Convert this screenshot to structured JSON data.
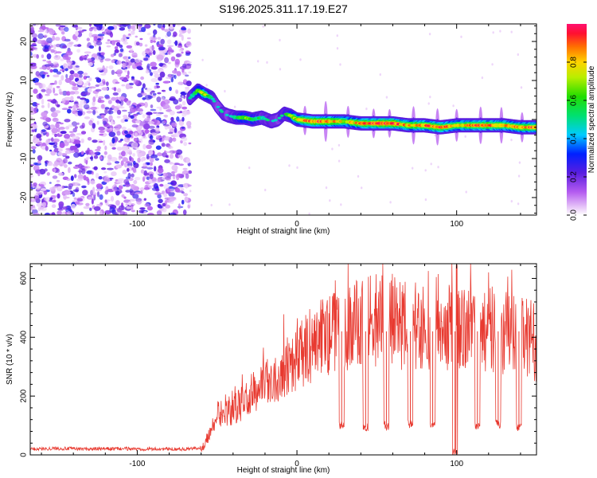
{
  "figure_title": "S196.2025.311.17.19.E27",
  "chart_data": [
    {
      "type": "heatmap",
      "title": "S196.2025.311.17.19.E27",
      "xlabel": "Height of straight line (km)",
      "ylabel": "Frequency (Hz)",
      "xlim": [
        -167,
        150
      ],
      "ylim": [
        -24.5,
        24.5
      ],
      "x_ticks": [
        -100,
        0,
        100
      ],
      "x_tick_labels": [
        "-100",
        "0",
        "100"
      ],
      "y_ticks": [
        -20,
        -10,
        0,
        10,
        20
      ],
      "y_tick_labels": [
        "-20",
        "-10",
        "0",
        "10",
        "20"
      ],
      "noise_region_x": [
        -167,
        -67
      ],
      "ridge": {
        "x": [
          -67,
          -62,
          -58,
          -53,
          -50,
          -46,
          -43,
          -38,
          -33,
          -28,
          -22,
          -16,
          -12,
          -8,
          -4,
          0,
          10,
          20,
          30,
          40,
          50,
          60,
          70,
          80,
          90,
          100,
          110,
          120,
          130,
          140,
          150
        ],
        "frequency": [
          5.5,
          7.5,
          6.5,
          5.5,
          3.5,
          1.5,
          1,
          0.5,
          0.5,
          0,
          0.5,
          -0.5,
          0,
          1.5,
          1,
          0,
          -0.5,
          -0.5,
          -0.5,
          -1,
          -1,
          -1,
          -1.5,
          -1.5,
          -2,
          -1.5,
          -1.5,
          -1.5,
          -1.5,
          -2,
          -2
        ],
        "amplitude": [
          0.45,
          0.6,
          0.75,
          0.45,
          0.4,
          0.45,
          0.4,
          0.55,
          0.65,
          0.6,
          0.5,
          0.45,
          0.4,
          0.5,
          0.65,
          0.75,
          0.9,
          0.85,
          0.75,
          0.85,
          0.95,
          0.95,
          0.8,
          0.85,
          0.9,
          0.75,
          0.85,
          0.9,
          0.8,
          0.8,
          0.9
        ]
      },
      "colorbar": {
        "label": "Normalized spectral amplitude",
        "range": [
          0.0,
          1.0
        ],
        "ticks": [
          0.0,
          0.2,
          0.4,
          0.6,
          0.8
        ],
        "tick_labels": [
          "0.0",
          "0.2",
          "0.4",
          "0.6",
          "0.8"
        ]
      }
    },
    {
      "type": "line",
      "xlabel": "Height of straight line (km)",
      "ylabel": "SNR (10 * v/v)",
      "xlim": [
        -167,
        150
      ],
      "ylim": [
        0,
        650
      ],
      "x_ticks": [
        -100,
        0,
        100
      ],
      "x_tick_labels": [
        "-100",
        "0",
        "100"
      ],
      "y_ticks": [
        0,
        200,
        400,
        600
      ],
      "y_tick_labels": [
        "0",
        "200",
        "400",
        "600"
      ],
      "series": [
        {
          "name": "SNR",
          "color": "#e83a30",
          "x": [
            -167,
            -150,
            -130,
            -110,
            -90,
            -70,
            -60,
            -55,
            -52,
            -48,
            -44,
            -40,
            -35,
            -30,
            -25,
            -20,
            -15,
            -10,
            -5,
            0,
            5,
            10,
            15,
            20,
            25,
            30,
            35,
            40,
            45,
            50,
            55,
            60,
            65,
            70,
            75,
            80,
            85,
            90,
            95,
            100,
            105,
            110,
            115,
            120,
            125,
            130,
            135,
            140,
            145,
            150
          ],
          "y": [
            20,
            22,
            20,
            21,
            20,
            20,
            22,
            70,
            100,
            120,
            140,
            150,
            170,
            200,
            220,
            240,
            260,
            280,
            320,
            330,
            350,
            380,
            400,
            410,
            420,
            430,
            440,
            450,
            455,
            460,
            455,
            450,
            445,
            440,
            435,
            430,
            440,
            445,
            440,
            450,
            440,
            430,
            440,
            430,
            420,
            420,
            410,
            410,
            400,
            380
          ],
          "dips": [
            {
              "x": 28,
              "y": 100
            },
            {
              "x": 43,
              "y": 95
            },
            {
              "x": 56,
              "y": 100
            },
            {
              "x": 71,
              "y": 105
            },
            {
              "x": 85,
              "y": 100
            },
            {
              "x": 99,
              "y": 10
            },
            {
              "x": 113,
              "y": 100
            },
            {
              "x": 126,
              "y": 105
            },
            {
              "x": 139,
              "y": 95
            }
          ],
          "peak": {
            "x": 100,
            "y": 645
          }
        }
      ]
    }
  ]
}
